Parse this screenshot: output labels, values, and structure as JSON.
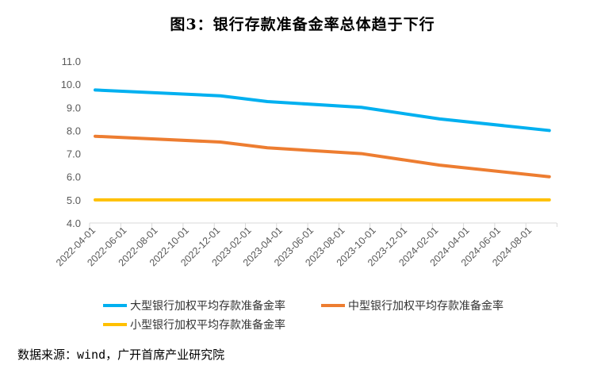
{
  "title": "图3：银行存款准备金率总体趋于下行",
  "source": "数据来源：wind，广开首席产业研究院",
  "chart_data": {
    "type": "line",
    "title": "图3：银行存款准备金率总体趋于下行",
    "xlabel": "",
    "ylabel": "",
    "ylim": [
      4.0,
      11.0
    ],
    "yticks": [
      "4.0",
      "5.0",
      "6.0",
      "7.0",
      "8.0",
      "9.0",
      "10.0",
      "11.0"
    ],
    "xticks": [
      "2022-04-01",
      "2022-06-01",
      "2022-08-01",
      "2022-10-01",
      "2022-12-01",
      "2023-02-01",
      "2023-04-01",
      "2023-06-01",
      "2023-08-01",
      "2023-10-01",
      "2023-12-01",
      "2024-02-01",
      "2024-04-01",
      "2024-06-01",
      "2024-08-01"
    ],
    "x": [
      "2022-04",
      "2022-12",
      "2023-03",
      "2023-09",
      "2024-02",
      "2024-09"
    ],
    "x_month_index": [
      0,
      8,
      11,
      17,
      22,
      29
    ],
    "grid": false,
    "legend": "bottom",
    "series": [
      {
        "name": "大型银行加权平均存款准备金率",
        "color": "#00B0F0",
        "values": [
          9.75,
          9.5,
          9.25,
          9.0,
          8.5,
          8.0
        ]
      },
      {
        "name": "中型银行加权平均存款准备金率",
        "color": "#ED7D31",
        "values": [
          7.75,
          7.5,
          7.25,
          7.0,
          6.5,
          6.0
        ]
      },
      {
        "name": "小型银行加权平均存款准备金率",
        "color": "#FFC000",
        "values": [
          5.0,
          5.0,
          5.0,
          5.0,
          5.0,
          5.0
        ]
      }
    ]
  }
}
